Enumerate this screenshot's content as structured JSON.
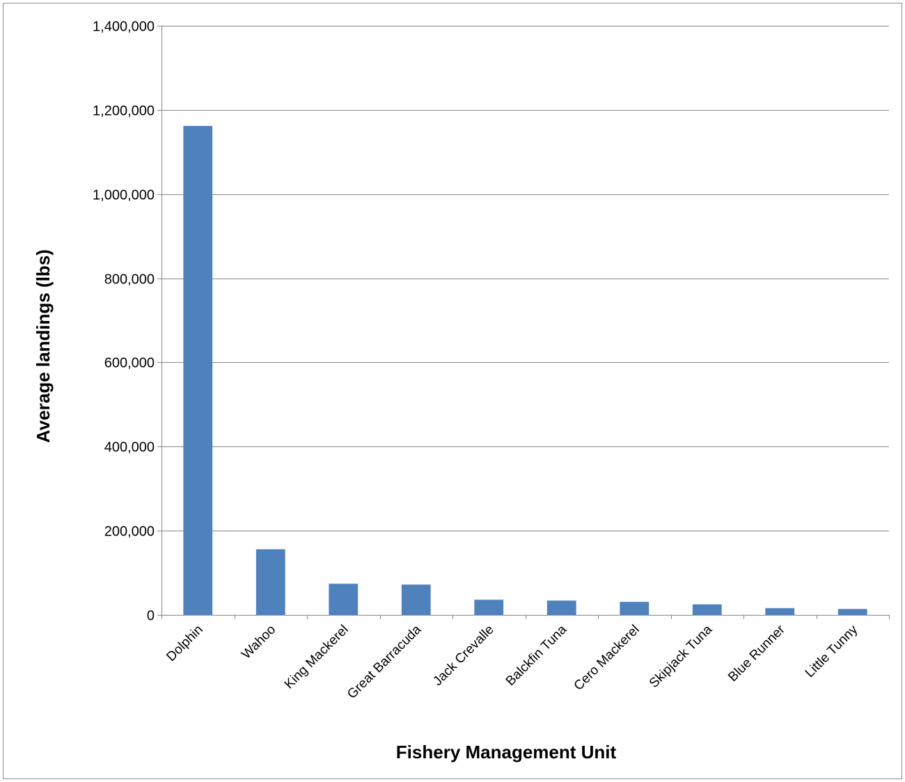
{
  "chart_data": {
    "type": "bar",
    "title": "",
    "xlabel": "Fishery Management Unit",
    "ylabel": "Average landings (lbs)",
    "categories": [
      "Dolphin",
      "Wahoo",
      "King Mackerel",
      "Great Barracuda",
      "Jack Crevalle",
      "Balckfin Tuna",
      "Cero Mackerel",
      "Skipjack Tuna",
      "Blue Runner",
      "Little Tunny"
    ],
    "values": [
      1162000,
      156000,
      74000,
      72000,
      36000,
      34000,
      31000,
      25000,
      16000,
      14000
    ],
    "ylim": [
      0,
      1400000
    ],
    "yticks": [
      0,
      200000,
      400000,
      600000,
      800000,
      1000000,
      1200000,
      1400000
    ],
    "ytick_labels": [
      "0",
      "200,000",
      "400,000",
      "600,000",
      "800,000",
      "1,000,000",
      "1,200,000",
      "1,400,000"
    ],
    "grid": true,
    "legend": "none",
    "bar_color": "#4f81bd",
    "grid_color": "#868686"
  }
}
